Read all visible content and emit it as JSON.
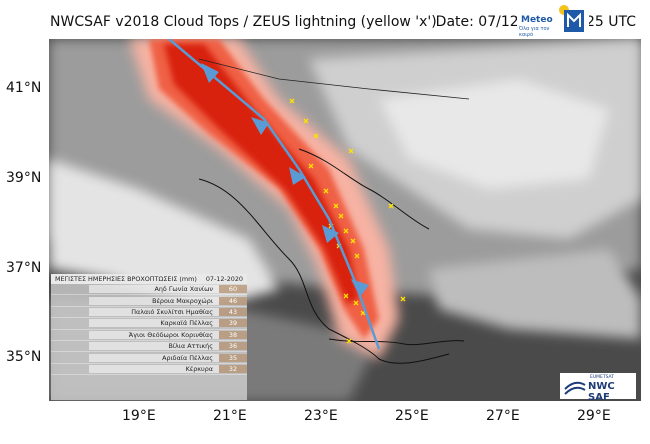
{
  "header": {
    "title": "NWCSAF v2018 Cloud Tops / ZEUS lightning (yellow 'x')",
    "date": "Date: 07/12/2020 06:25 UTC"
  },
  "axes": {
    "y_ticks": [
      "41°N",
      "39°N",
      "37°N",
      "35°N"
    ],
    "x_ticks": [
      "19°E",
      "21°E",
      "23°E",
      "25°E",
      "27°E",
      "29°E"
    ]
  },
  "colors": {
    "storm_core": "#d82010",
    "storm_mid": "#ef6045",
    "storm_light": "#f7b2a3",
    "cloud_gray": "#9a9a9a",
    "cloud_white": "#f2f2f2",
    "lightning": "#ffe000",
    "front_line": "#5b9bd5"
  },
  "logos": {
    "meteo_name": "Meteo",
    "meteo_tagline": "Όλα για τον καιρό",
    "nwc_top": "EUMETSAT",
    "nwc_name": "NWC SAF"
  },
  "table": {
    "title": "ΜΕΓΙΣΤΕΣ ΗΜΕΡΗΣΙΕΣ ΒΡΟΧΟΠΤΩΣΕΙΣ (mm)",
    "date": "07-12-2020",
    "rows": [
      {
        "name": "Αηδ Γωνία Χανίων",
        "value": "60"
      },
      {
        "name": "Βέροια Μακροχώρι",
        "value": "46"
      },
      {
        "name": "Παλαιό Σκυλίτσι Ημαθίας",
        "value": "43"
      },
      {
        "name": "Καρκαϊά Πέλλας",
        "value": "39"
      },
      {
        "name": "Άγιοι Θεόδωροι Κορινθίας",
        "value": "38"
      },
      {
        "name": "Βίλια Αττικής",
        "value": "36"
      },
      {
        "name": "Αριδαία Πέλλας",
        "value": "35"
      },
      {
        "name": "Κέρκυρα",
        "value": "32"
      }
    ]
  }
}
